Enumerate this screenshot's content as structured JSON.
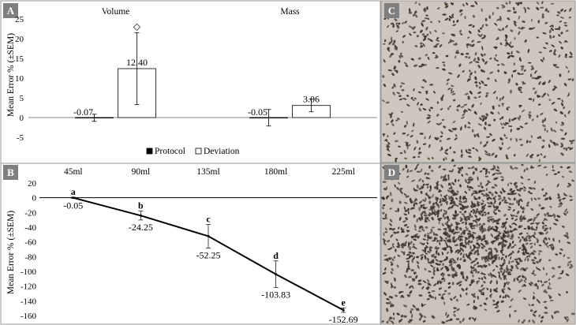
{
  "panels": {
    "A": "A",
    "B": "B",
    "C": "C",
    "D": "D"
  },
  "chart_data": [
    {
      "panel": "A",
      "type": "bar",
      "categories": [
        "Volume",
        "Mass"
      ],
      "ylabel": "Mean Error % (±SEM)",
      "ylim": [
        -5,
        25
      ],
      "yticks": [
        25,
        20,
        15,
        10,
        5,
        0,
        -5
      ],
      "grid": false,
      "legend_position": "bottom-center",
      "series": [
        {
          "name": "Protocol",
          "values": [
            -0.07,
            -0.05
          ],
          "errors": [
            0.9,
            2.1
          ],
          "fill": "#000000",
          "value_labels": [
            "-0.07",
            "-0.05"
          ]
        },
        {
          "name": "Deviation",
          "values": [
            12.4,
            3.06
          ],
          "errors": [
            9.1,
            1.6
          ],
          "fill": "#ffffff",
          "value_labels": [
            "12.40",
            "3.06"
          ]
        }
      ],
      "annotations": [
        {
          "category": "Volume",
          "series": "Deviation",
          "symbol": "◇"
        }
      ]
    },
    {
      "panel": "B",
      "type": "line",
      "x": [
        "45ml",
        "90ml",
        "135ml",
        "180ml",
        "225ml"
      ],
      "y": [
        -0.05,
        -24.25,
        -52.25,
        -103.83,
        -152.69
      ],
      "errors": [
        0.8,
        6,
        16,
        18,
        3
      ],
      "value_labels": [
        "-0.05",
        "-24.25",
        "-52.25",
        "-103.83",
        "-152.69"
      ],
      "letters": [
        "a",
        "b",
        "c",
        "d",
        "e"
      ],
      "ylabel": "Mean Error % (±SEM)",
      "ylim": [
        -160,
        20
      ],
      "yticks": [
        20,
        0,
        -20,
        -40,
        -60,
        -80,
        -100,
        -120,
        -140,
        -160
      ],
      "grid": false
    }
  ],
  "colors": {
    "panel_letter_bg": "#7f7f7f",
    "photo_bg": "#cfc7bf",
    "insect": "#3d342b"
  }
}
